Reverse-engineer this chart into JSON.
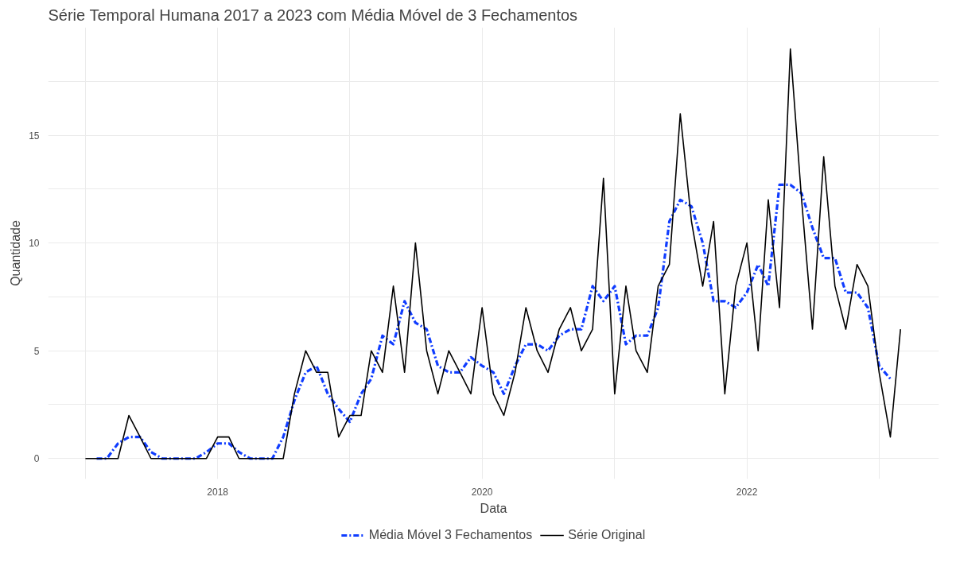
{
  "chart_data": {
    "type": "line",
    "title": "Série Temporal Humana 2017 a 2023 com Média Móvel de 3 Fechamentos",
    "xlabel": "Data",
    "ylabel": "Quantidade",
    "series": [
      {
        "name": "Média Móvel 3 Fechamentos",
        "color": "#0f3cff",
        "line_style": "dashed",
        "x": [
          "2017-02",
          "2017-03",
          "2017-04",
          "2017-05",
          "2017-06",
          "2017-07",
          "2017-08",
          "2017-09",
          "2017-10",
          "2017-11",
          "2017-12",
          "2018-01",
          "2018-02",
          "2018-03",
          "2018-04",
          "2018-05",
          "2018-06",
          "2018-07",
          "2018-08",
          "2018-09",
          "2018-10",
          "2018-11",
          "2018-12",
          "2019-01",
          "2019-02",
          "2019-03",
          "2019-04",
          "2019-05",
          "2019-06",
          "2019-07",
          "2019-08",
          "2019-09",
          "2019-10",
          "2019-11",
          "2019-12",
          "2020-01",
          "2020-02",
          "2020-03",
          "2020-04",
          "2020-05",
          "2020-06",
          "2020-07",
          "2020-08",
          "2020-09",
          "2020-10",
          "2020-11",
          "2020-12",
          "2021-01",
          "2021-02",
          "2021-03",
          "2021-04",
          "2021-05",
          "2021-06",
          "2021-07",
          "2021-08",
          "2021-09",
          "2021-10",
          "2021-11",
          "2021-12",
          "2022-01",
          "2022-02",
          "2022-03",
          "2022-04",
          "2022-05",
          "2022-06",
          "2022-07",
          "2022-08",
          "2022-09",
          "2022-10",
          "2022-11",
          "2022-12",
          "2023-01",
          "2023-02"
        ],
        "values": [
          0,
          0,
          0.7,
          1,
          1,
          0.3,
          0,
          0,
          0,
          0,
          0.3,
          0.7,
          0.7,
          0.3,
          0,
          0,
          0,
          1,
          2.7,
          4,
          4.3,
          3,
          2.3,
          1.7,
          3,
          3.7,
          5.7,
          5.3,
          7.3,
          6.3,
          6,
          4.3,
          4,
          4,
          4.7,
          4.3,
          4,
          3,
          4.3,
          5.3,
          5.3,
          5,
          5.7,
          6,
          6,
          8,
          7.3,
          8,
          5.3,
          5.7,
          5.7,
          7,
          11,
          12,
          11.7,
          10,
          7.3,
          7.3,
          7,
          7.7,
          9,
          8,
          12.7,
          12.7,
          12.3,
          10.7,
          9.3,
          9.3,
          7.7,
          7.7,
          7,
          4.3,
          3.7
        ]
      },
      {
        "name": "Série Original",
        "color": "#000000",
        "line_style": "solid",
        "x": [
          "2017-01",
          "2017-02",
          "2017-03",
          "2017-04",
          "2017-05",
          "2017-06",
          "2017-07",
          "2017-08",
          "2017-09",
          "2017-10",
          "2017-11",
          "2017-12",
          "2018-01",
          "2018-02",
          "2018-03",
          "2018-04",
          "2018-05",
          "2018-06",
          "2018-07",
          "2018-08",
          "2018-09",
          "2018-10",
          "2018-11",
          "2018-12",
          "2019-01",
          "2019-02",
          "2019-03",
          "2019-04",
          "2019-05",
          "2019-06",
          "2019-07",
          "2019-08",
          "2019-09",
          "2019-10",
          "2019-11",
          "2019-12",
          "2020-01",
          "2020-02",
          "2020-03",
          "2020-04",
          "2020-05",
          "2020-06",
          "2020-07",
          "2020-08",
          "2020-09",
          "2020-10",
          "2020-11",
          "2020-12",
          "2021-01",
          "2021-02",
          "2021-03",
          "2021-04",
          "2021-05",
          "2021-06",
          "2021-07",
          "2021-08",
          "2021-09",
          "2021-10",
          "2021-11",
          "2021-12",
          "2022-01",
          "2022-02",
          "2022-03",
          "2022-04",
          "2022-05",
          "2022-06",
          "2022-07",
          "2022-08",
          "2022-09",
          "2022-10",
          "2022-11",
          "2022-12",
          "2023-01",
          "2023-02",
          "2023-03"
        ],
        "values": [
          0,
          0,
          0,
          0,
          2,
          1,
          0,
          0,
          0,
          0,
          0,
          0,
          1,
          1,
          0,
          0,
          0,
          0,
          0,
          3,
          5,
          4,
          4,
          1,
          2,
          2,
          5,
          4,
          8,
          4,
          10,
          5,
          3,
          5,
          4,
          3,
          7,
          3,
          2,
          4,
          7,
          5,
          4,
          6,
          7,
          5,
          6,
          13,
          3,
          8,
          5,
          4,
          8,
          9,
          16,
          11,
          8,
          11,
          3,
          8,
          10,
          5,
          12,
          7,
          19,
          12,
          6,
          14,
          8,
          6,
          9,
          8,
          4,
          1,
          6
        ]
      }
    ],
    "xlim": [
      "2016-09-20",
      "2023-06-15"
    ],
    "xticks": [
      {
        "value": "2017-01-01",
        "label": null
      },
      {
        "value": "2018-01-01",
        "label": "2018"
      },
      {
        "value": "2019-01-01",
        "label": null
      },
      {
        "value": "2020-01-01",
        "label": "2020"
      },
      {
        "value": "2021-01-01",
        "label": null
      },
      {
        "value": "2022-01-01",
        "label": "2022"
      },
      {
        "value": "2023-01-01",
        "label": null
      }
    ],
    "ylim": [
      -0.95,
      20
    ],
    "yticks": [
      0,
      {
        "value": 2.5,
        "label": null
      },
      5,
      {
        "value": 7.5,
        "label": null
      },
      10,
      {
        "value": 12.5,
        "label": null
      },
      15,
      {
        "value": 17.5,
        "label": null
      }
    ],
    "grid": true,
    "legend": "bottom",
    "marker": "none"
  }
}
